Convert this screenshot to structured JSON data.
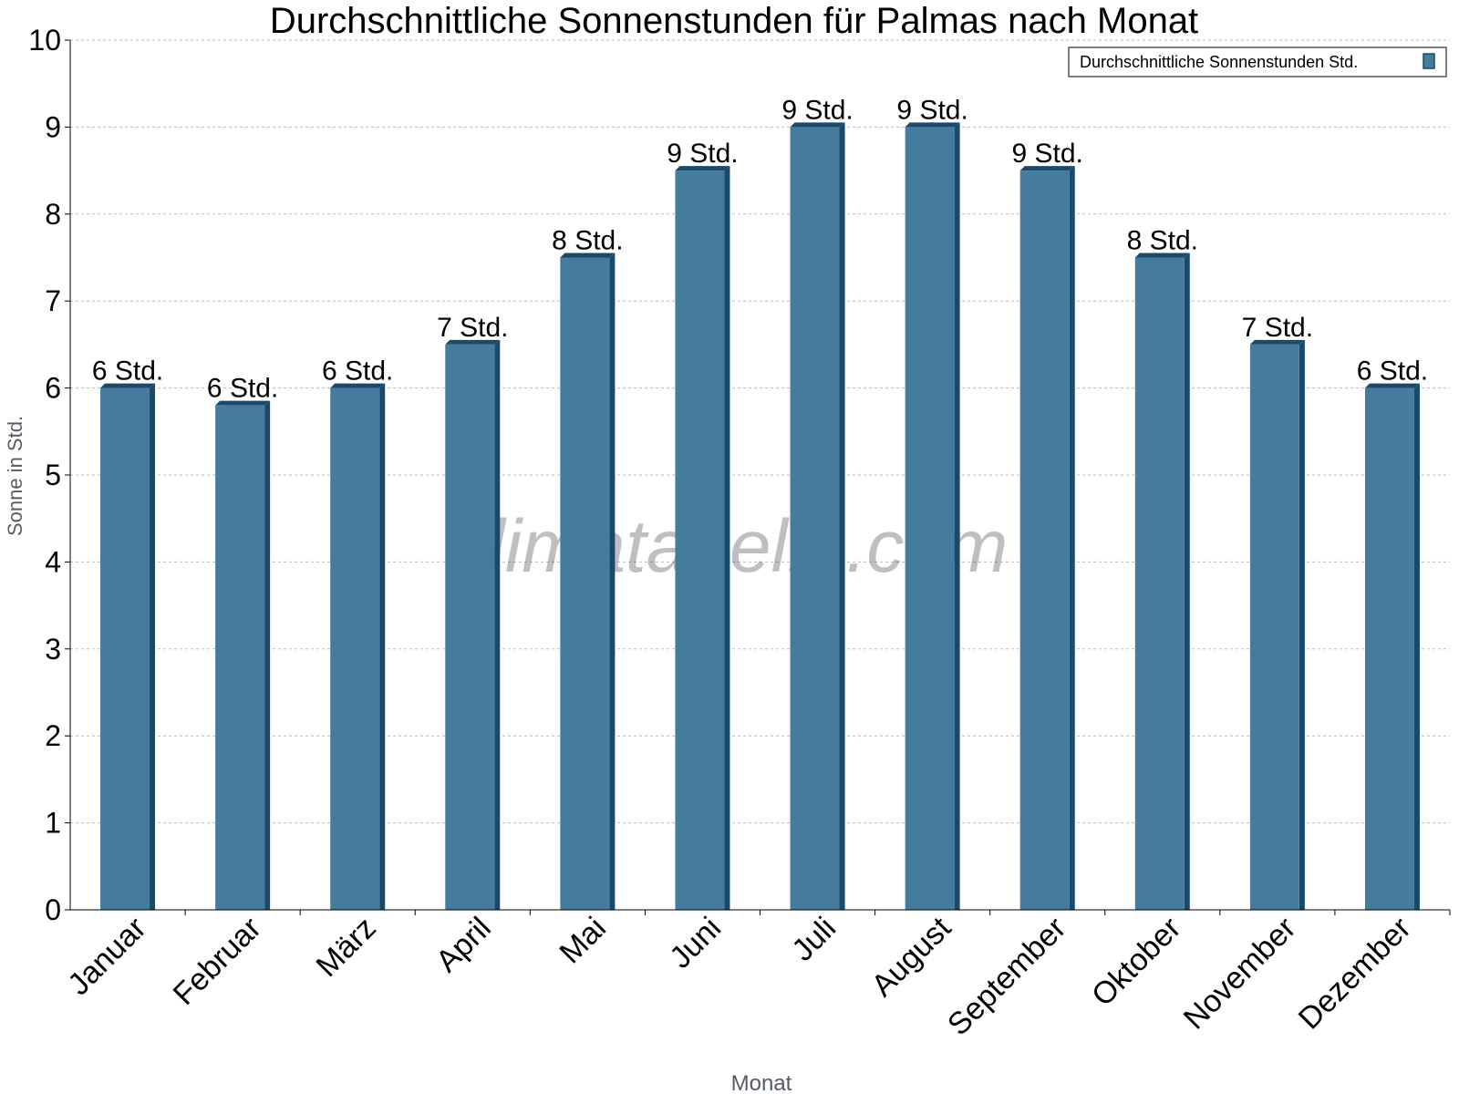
{
  "chart_data": {
    "type": "bar",
    "title": "Durchschnittliche Sonnenstunden für Palmas nach Monat",
    "xlabel": "Monat",
    "ylabel": "Sonne in Std.",
    "ylim": [
      0,
      10
    ],
    "yticks": [
      "0",
      "1",
      "2",
      "3",
      "4",
      "5",
      "6",
      "7",
      "8",
      "9",
      "10"
    ],
    "grid": true,
    "legend_position": "top-right",
    "watermark": "klimatabelle.com",
    "categories": [
      "Januar",
      "Februar",
      "März",
      "April",
      "Mai",
      "Juni",
      "Juli",
      "August",
      "September",
      "Oktober",
      "November",
      "Dezember"
    ],
    "series": [
      {
        "name": "Durchschnittliche Sonnenstunden Std.",
        "color": "#457b9d",
        "side_color": "#1a4a6b",
        "values": [
          6,
          5.8,
          6,
          6.5,
          7.5,
          8.5,
          9,
          9,
          8.5,
          7.5,
          6.5,
          6
        ],
        "labels": [
          "6 Std.",
          "6 Std.",
          "6 Std.",
          "7 Std.",
          "8 Std.",
          "9 Std.",
          "9 Std.",
          "9 Std.",
          "9 Std.",
          "8 Std.",
          "7 Std.",
          "6 Std."
        ]
      }
    ]
  }
}
